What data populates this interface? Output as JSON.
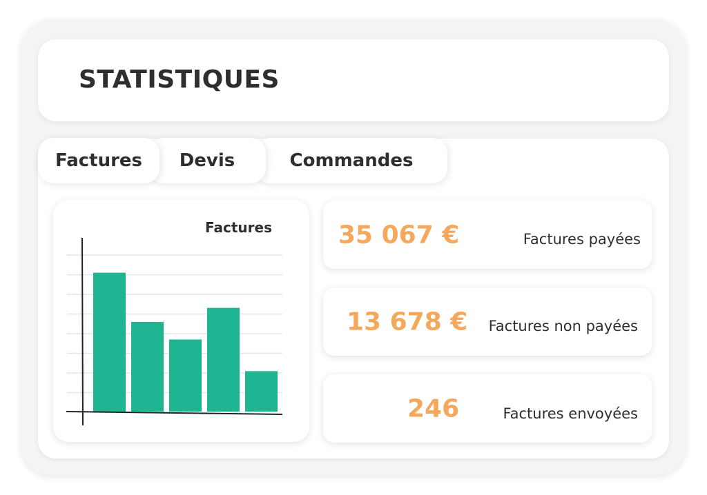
{
  "header": {
    "title": "STATISTIQUES"
  },
  "tabs": [
    {
      "label": "Factures"
    },
    {
      "label": "Devis"
    },
    {
      "label": "Commandes"
    }
  ],
  "chart_data": {
    "type": "bar",
    "title": "Factures",
    "categories": [
      "",
      "",
      "",
      "",
      ""
    ],
    "values": [
      79,
      51,
      41,
      59,
      23
    ],
    "xlabel": "",
    "ylabel": "",
    "ylim": [
      0,
      100
    ],
    "grid": true,
    "bar_color": "#1fb592"
  },
  "stats": [
    {
      "value": "35 067 €",
      "label": "Factures payées"
    },
    {
      "value": "13 678 €",
      "label": "Factures non payées"
    },
    {
      "value": "246",
      "label": "Factures envoyées"
    }
  ],
  "colors": {
    "accent": "#f4a85b",
    "bars": "#1fb592",
    "text": "#2e2e2e"
  }
}
